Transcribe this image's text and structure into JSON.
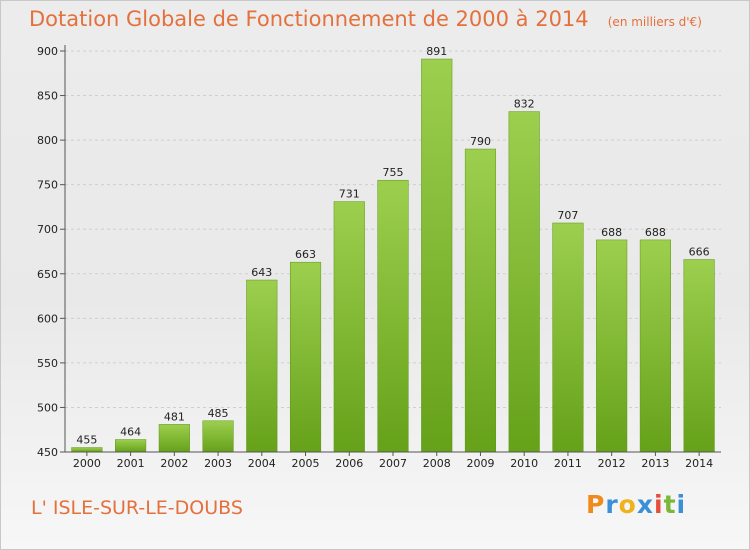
{
  "chart_data": {
    "type": "bar",
    "title": "Dotation Globale de Fonctionnement de 2000 à 2014",
    "unit": "(en milliers d'€)",
    "categories": [
      "2000",
      "2001",
      "2002",
      "2003",
      "2004",
      "2005",
      "2006",
      "2007",
      "2008",
      "2009",
      "2010",
      "2011",
      "2012",
      "2013",
      "2014"
    ],
    "values": [
      455,
      464,
      481,
      485,
      643,
      663,
      731,
      755,
      891,
      790,
      832,
      707,
      688,
      688,
      666
    ],
    "ylim": [
      450,
      900
    ],
    "yticks": [
      450,
      500,
      550,
      600,
      650,
      700,
      750,
      800,
      850,
      900
    ],
    "grid": true,
    "bar_color_top": "#9ccf4e",
    "bar_color_bottom": "#66a11a",
    "title_color": "#e4703c"
  },
  "place_name": "L' ISLE-SUR-LE-DOUBS",
  "logo": {
    "letters": [
      "P",
      "r",
      "o",
      "x",
      "i",
      "t",
      "i"
    ],
    "colors": [
      "#f08a1c",
      "#3a8fd6",
      "#f0b21c",
      "#3a8fd6",
      "#e84c3d",
      "#7ab83a",
      "#3a8fd6"
    ]
  }
}
